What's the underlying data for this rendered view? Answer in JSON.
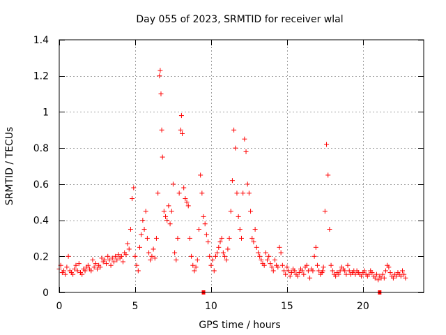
{
  "chart_data": {
    "type": "scatter",
    "title": "Day 055 of 2023, SRMTID for receiver wlal",
    "xlabel": "GPS time / hours",
    "ylabel": "SRMTID / TECUs",
    "xlim": [
      0,
      24
    ],
    "ylim": [
      0,
      1.4
    ],
    "x_ticks": [
      0,
      5,
      10,
      15,
      20
    ],
    "x_tick_labels": [
      "0",
      "5",
      "10",
      "15",
      "20"
    ],
    "y_ticks": [
      0,
      0.2,
      0.4,
      0.6,
      0.8,
      1.0,
      1.2,
      1.4
    ],
    "y_tick_labels": [
      "0",
      "0.2",
      "0.4",
      "0.6",
      "0.8",
      "1",
      "1.2",
      "1.4"
    ],
    "grid": true,
    "marker": "plus",
    "color": "#ff0000",
    "baseline_markers_x": [
      9.5,
      21.1
    ],
    "series": [
      {
        "name": "SRMTID",
        "x": [
          0.0,
          0.1,
          0.2,
          0.3,
          0.4,
          0.5,
          0.6,
          0.7,
          0.8,
          0.9,
          1.0,
          1.1,
          1.2,
          1.3,
          1.4,
          1.5,
          1.6,
          1.7,
          1.8,
          1.9,
          2.0,
          2.1,
          2.2,
          2.3,
          2.4,
          2.5,
          2.6,
          2.7,
          2.8,
          2.9,
          3.0,
          3.1,
          3.2,
          3.3,
          3.4,
          3.5,
          3.6,
          3.7,
          3.8,
          3.9,
          4.0,
          4.1,
          4.2,
          4.3,
          4.4,
          4.5,
          4.6,
          4.7,
          4.8,
          4.9,
          5.0,
          5.1,
          5.2,
          5.3,
          5.4,
          5.5,
          5.6,
          5.7,
          5.8,
          5.9,
          6.0,
          6.1,
          6.2,
          6.3,
          6.4,
          6.5,
          6.6,
          6.65,
          6.7,
          6.75,
          6.8,
          6.9,
          7.0,
          7.1,
          7.2,
          7.3,
          7.4,
          7.5,
          7.6,
          7.7,
          7.8,
          7.9,
          8.0,
          8.05,
          8.1,
          8.2,
          8.3,
          8.4,
          8.5,
          8.6,
          8.7,
          8.8,
          8.9,
          9.0,
          9.1,
          9.2,
          9.3,
          9.4,
          9.5,
          9.6,
          9.7,
          9.8,
          9.9,
          10.0,
          10.1,
          10.2,
          10.3,
          10.4,
          10.5,
          10.6,
          10.7,
          10.8,
          10.9,
          11.0,
          11.1,
          11.2,
          11.3,
          11.4,
          11.5,
          11.6,
          11.7,
          11.8,
          11.9,
          12.0,
          12.1,
          12.2,
          12.3,
          12.4,
          12.5,
          12.6,
          12.7,
          12.8,
          12.9,
          13.0,
          13.1,
          13.2,
          13.3,
          13.4,
          13.5,
          13.6,
          13.7,
          13.8,
          13.9,
          14.0,
          14.1,
          14.2,
          14.3,
          14.4,
          14.5,
          14.6,
          14.7,
          14.8,
          14.9,
          15.0,
          15.1,
          15.2,
          15.3,
          15.4,
          15.5,
          15.6,
          15.7,
          15.8,
          15.9,
          16.0,
          16.1,
          16.2,
          16.3,
          16.4,
          16.5,
          16.6,
          16.7,
          16.8,
          16.9,
          17.0,
          17.1,
          17.2,
          17.3,
          17.35,
          17.4,
          17.5,
          17.6,
          17.7,
          17.8,
          17.9,
          18.0,
          18.1,
          18.2,
          18.3,
          18.4,
          18.5,
          18.6,
          18.7,
          18.8,
          18.9,
          19.0,
          19.1,
          19.2,
          19.3,
          19.4,
          19.5,
          19.6,
          19.7,
          19.8,
          19.9,
          20.0,
          20.1,
          20.2,
          20.3,
          20.4,
          20.5,
          20.6,
          20.7,
          20.8,
          20.9,
          21.0,
          21.1,
          21.2,
          21.3,
          21.4,
          21.5,
          21.6,
          21.7,
          21.8,
          21.9,
          22.0,
          22.1,
          22.2,
          22.3,
          22.4,
          22.5,
          22.6,
          22.7,
          22.8
        ],
        "y": [
          0.13,
          0.15,
          0.11,
          0.12,
          0.1,
          0.14,
          0.2,
          0.12,
          0.11,
          0.1,
          0.13,
          0.15,
          0.12,
          0.16,
          0.11,
          0.1,
          0.13,
          0.12,
          0.14,
          0.15,
          0.13,
          0.12,
          0.18,
          0.14,
          0.16,
          0.13,
          0.15,
          0.14,
          0.19,
          0.17,
          0.18,
          0.16,
          0.2,
          0.18,
          0.15,
          0.19,
          0.17,
          0.2,
          0.18,
          0.21,
          0.19,
          0.2,
          0.17,
          0.22,
          0.21,
          0.27,
          0.24,
          0.35,
          0.52,
          0.58,
          0.2,
          0.15,
          0.12,
          0.25,
          0.32,
          0.4,
          0.35,
          0.45,
          0.3,
          0.22,
          0.18,
          0.2,
          0.24,
          0.19,
          0.3,
          0.55,
          1.2,
          1.23,
          1.1,
          0.9,
          0.75,
          0.45,
          0.42,
          0.4,
          0.48,
          0.38,
          0.45,
          0.6,
          0.22,
          0.18,
          0.3,
          0.55,
          0.9,
          0.98,
          0.88,
          0.58,
          0.52,
          0.5,
          0.48,
          0.3,
          0.2,
          0.15,
          0.12,
          0.14,
          0.18,
          0.35,
          0.65,
          0.55,
          0.42,
          0.38,
          0.32,
          0.28,
          0.2,
          0.15,
          0.18,
          0.12,
          0.2,
          0.22,
          0.25,
          0.28,
          0.3,
          0.22,
          0.2,
          0.18,
          0.24,
          0.3,
          0.45,
          0.62,
          0.9,
          0.8,
          0.55,
          0.42,
          0.35,
          0.3,
          0.55,
          0.85,
          0.78,
          0.6,
          0.55,
          0.45,
          0.3,
          0.28,
          0.35,
          0.25,
          0.22,
          0.2,
          0.18,
          0.16,
          0.15,
          0.22,
          0.18,
          0.2,
          0.16,
          0.14,
          0.12,
          0.18,
          0.15,
          0.14,
          0.25,
          0.22,
          0.15,
          0.12,
          0.1,
          0.14,
          0.12,
          0.09,
          0.11,
          0.13,
          0.12,
          0.1,
          0.09,
          0.11,
          0.13,
          0.12,
          0.1,
          0.14,
          0.15,
          0.12,
          0.08,
          0.13,
          0.12,
          0.2,
          0.25,
          0.15,
          0.12,
          0.1,
          0.11,
          0.12,
          0.14,
          0.45,
          0.82,
          0.65,
          0.35,
          0.15,
          0.12,
          0.1,
          0.09,
          0.11,
          0.1,
          0.12,
          0.14,
          0.13,
          0.12,
          0.1,
          0.15,
          0.12,
          0.1,
          0.11,
          0.12,
          0.1,
          0.12,
          0.11,
          0.1,
          0.09,
          0.11,
          0.12,
          0.1,
          0.09,
          0.1,
          0.12,
          0.11,
          0.09,
          0.08,
          0.1,
          0.07,
          0.09,
          0.08,
          0.1,
          0.08,
          0.12,
          0.15,
          0.14,
          0.11,
          0.09,
          0.08,
          0.1,
          0.09,
          0.11,
          0.1,
          0.09,
          0.12,
          0.1,
          0.08
        ]
      }
    ]
  }
}
